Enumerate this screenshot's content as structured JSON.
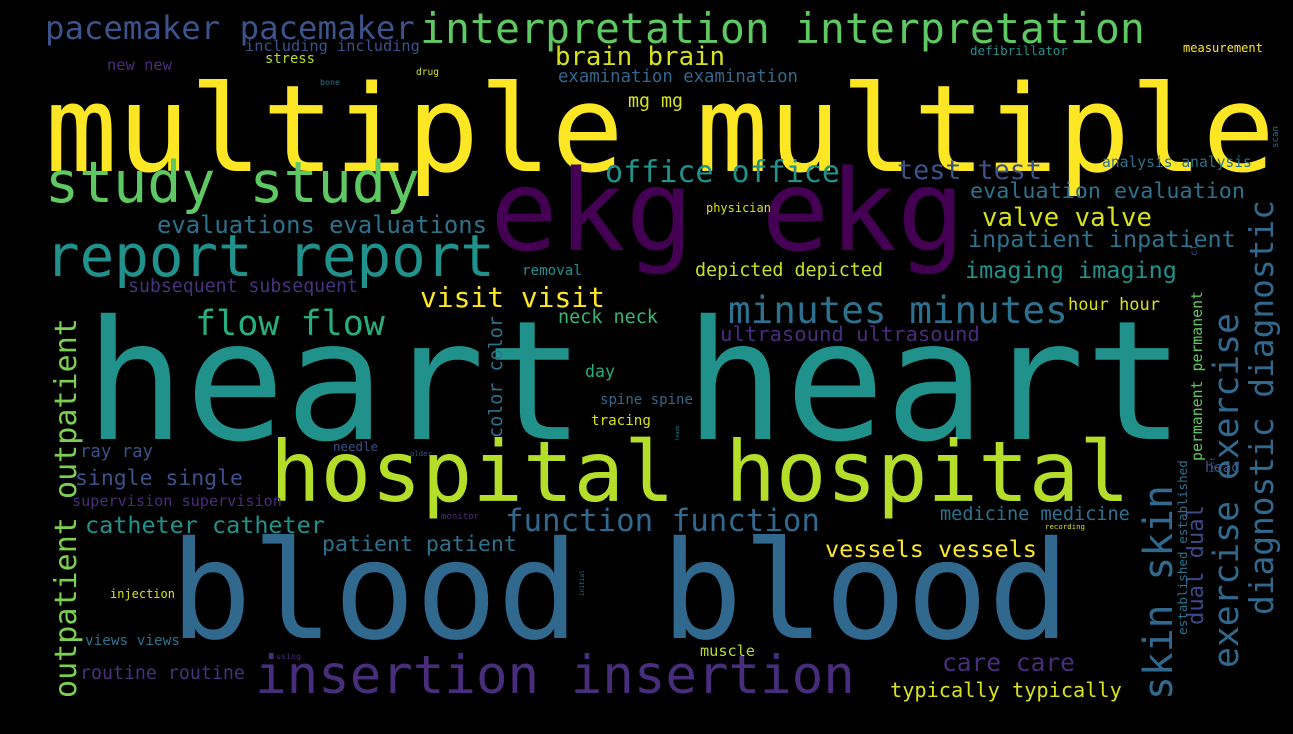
{
  "colors": {
    "background": "#000000"
  },
  "words": [
    {
      "text": "multiple multiple",
      "color": "#fde725"
    },
    {
      "text": "heart heart",
      "color": "#21918c"
    },
    {
      "text": "blood blood",
      "color": "#31688e"
    },
    {
      "text": "ekg ekg",
      "color": "#440154"
    },
    {
      "text": "hospital hospital",
      "color": "#b5de2b"
    },
    {
      "text": "insertion insertion",
      "color": "#472d7b"
    },
    {
      "text": "report report",
      "color": "#21918c"
    },
    {
      "text": "study study",
      "color": "#5ec962"
    },
    {
      "text": "interpretation interpretation",
      "color": "#5ec962"
    },
    {
      "text": "pacemaker pacemaker",
      "color": "#3b528b"
    },
    {
      "text": "minutes minutes",
      "color": "#2c728e"
    },
    {
      "text": "flow flow",
      "color": "#27ad81"
    },
    {
      "text": "function function",
      "color": "#31688e"
    },
    {
      "text": "office office",
      "color": "#21918c"
    },
    {
      "text": "test test",
      "color": "#3b528b"
    },
    {
      "text": "brain brain",
      "color": "#d8e219"
    },
    {
      "text": "visit visit",
      "color": "#fde725"
    },
    {
      "text": "evaluations evaluations",
      "color": "#2c728e"
    },
    {
      "text": "evaluation evaluation",
      "color": "#2c728e"
    },
    {
      "text": "valve valve",
      "color": "#d8e219"
    },
    {
      "text": "inpatient inpatient",
      "color": "#2c728e"
    },
    {
      "text": "imaging imaging",
      "color": "#21918c"
    },
    {
      "text": "exercise exercise",
      "color": "#31688e"
    },
    {
      "text": "diagnostic diagnostic",
      "color": "#31688e"
    },
    {
      "text": "skin skin",
      "color": "#31688e"
    },
    {
      "text": "outpatient outpatient",
      "color": "#7ad151"
    },
    {
      "text": "single single",
      "color": "#3b528b"
    },
    {
      "text": "catheter catheter",
      "color": "#21918c"
    },
    {
      "text": "patient patient",
      "color": "#2c728e"
    },
    {
      "text": "vessels vessels",
      "color": "#fde725"
    },
    {
      "text": "care care",
      "color": "#472d7b"
    },
    {
      "text": "typically typically",
      "color": "#d8e219"
    },
    {
      "text": "ultrasound ultrasound",
      "color": "#472d7b"
    },
    {
      "text": "depicted depicted",
      "color": "#c8e020"
    },
    {
      "text": "subsequent subsequent",
      "color": "#46337e"
    },
    {
      "text": "medicine medicine",
      "color": "#2c728e"
    },
    {
      "text": "hour hour",
      "color": "#d8e219"
    },
    {
      "text": "neck neck",
      "color": "#35b779"
    },
    {
      "text": "dual dual",
      "color": "#3e4989"
    },
    {
      "text": "color color",
      "color": "#2c728e"
    },
    {
      "text": "examination examination",
      "color": "#31688e"
    },
    {
      "text": "including including",
      "color": "#3b528b"
    },
    {
      "text": "mg mg",
      "color": "#d8e219"
    },
    {
      "text": "analysis analysis",
      "color": "#2c728e"
    },
    {
      "text": "ray ray",
      "color": "#3b528b"
    },
    {
      "text": "supervision supervision",
      "color": "#472d7b"
    },
    {
      "text": "routine routine",
      "color": "#46337e"
    },
    {
      "text": "views views",
      "color": "#2c728e"
    },
    {
      "text": "spine spine",
      "color": "#31688e"
    },
    {
      "text": "permanent permanent",
      "color": "#5ec962"
    },
    {
      "text": "established established",
      "color": "#2c728e"
    },
    {
      "text": "new new",
      "color": "#472d7b"
    },
    {
      "text": "stress",
      "color": "#b5de2b"
    },
    {
      "text": "tracing",
      "color": "#d8e219"
    },
    {
      "text": "day",
      "color": "#27ad81"
    },
    {
      "text": "injection",
      "color": "#d8e219"
    },
    {
      "text": "muscle",
      "color": "#b5de2b"
    },
    {
      "text": "measurement",
      "color": "#fde725"
    },
    {
      "text": "defibrillator",
      "color": "#21918c"
    },
    {
      "text": "physician",
      "color": "#d8e219"
    },
    {
      "text": "removal",
      "color": "#21918c"
    },
    {
      "text": "head",
      "color": "#3b528b"
    },
    {
      "text": "needle",
      "color": "#3b528b"
    },
    {
      "text": "drug",
      "color": "#d8e219"
    },
    {
      "text": "bone",
      "color": "#2c728e"
    },
    {
      "text": "ct",
      "color": "#3b528b"
    },
    {
      "text": "scan",
      "color": "#2c728e"
    },
    {
      "text": "leads",
      "color": "#2c728e"
    },
    {
      "text": "left",
      "color": "#3b528b"
    },
    {
      "text": "recording",
      "color": "#d8e219"
    },
    {
      "text": "using",
      "color": "#472d7b"
    },
    {
      "text": "initial",
      "color": "#2c728e"
    },
    {
      "text": "monitor",
      "color": "#472d7b"
    },
    {
      "text": "older",
      "color": "#3b528b"
    }
  ]
}
